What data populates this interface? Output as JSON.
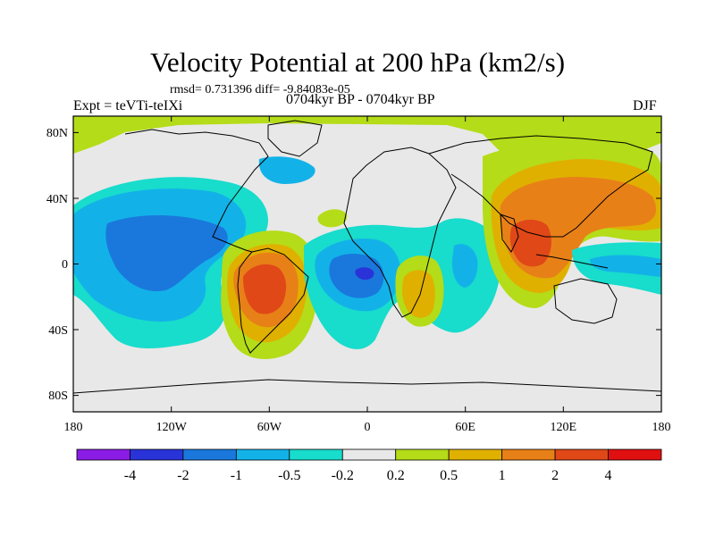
{
  "header": {
    "title": "Velocity Potential at 200 hPa (km2/s)",
    "stats": "rmsd= 0.731396 diff= -9.84083e-05",
    "experiment": "Expt = teVTi-teIXi",
    "period": "0704kyr BP - 0704kyr BP",
    "season": "DJF"
  },
  "axes": {
    "x_ticks": [
      "180",
      "120W",
      "60W",
      "0",
      "60E",
      "120E",
      "180"
    ],
    "y_ticks": [
      "80N",
      "40N",
      "0",
      "40S",
      "80S"
    ]
  },
  "colorbar": {
    "labels": [
      "-4",
      "-2",
      "-1",
      "-0.5",
      "-0.2",
      "0.2",
      "0.5",
      "1",
      "2",
      "4"
    ],
    "colors": [
      "#8a1ce6",
      "#2a33d8",
      "#1a78dc",
      "#12b2e8",
      "#18dccc",
      "#e8e8e8",
      "#b4dc18",
      "#e0b000",
      "#e88018",
      "#e04818",
      "#e01010"
    ]
  },
  "map_colors": {
    "background": "#e8e8e8",
    "outline": "#000000",
    "coast": "#000000"
  }
}
